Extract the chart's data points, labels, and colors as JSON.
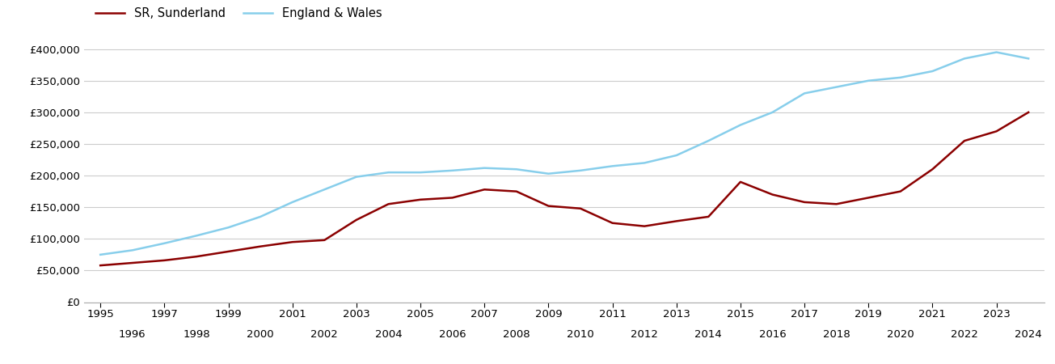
{
  "years": [
    1995,
    1996,
    1997,
    1998,
    1999,
    2000,
    2001,
    2002,
    2003,
    2004,
    2005,
    2006,
    2007,
    2008,
    2009,
    2010,
    2011,
    2012,
    2013,
    2014,
    2015,
    2016,
    2017,
    2018,
    2019,
    2020,
    2021,
    2022,
    2023,
    2024
  ],
  "sunderland": [
    58000,
    62000,
    66000,
    72000,
    80000,
    88000,
    95000,
    98000,
    130000,
    155000,
    162000,
    165000,
    178000,
    175000,
    152000,
    148000,
    125000,
    120000,
    128000,
    135000,
    190000,
    170000,
    158000,
    155000,
    165000,
    175000,
    210000,
    255000,
    270000,
    300000
  ],
  "england_wales": [
    75000,
    82000,
    93000,
    105000,
    118000,
    135000,
    158000,
    178000,
    198000,
    205000,
    205000,
    208000,
    212000,
    210000,
    203000,
    208000,
    215000,
    220000,
    232000,
    255000,
    280000,
    300000,
    330000,
    340000,
    350000,
    355000,
    365000,
    385000,
    395000,
    385000
  ],
  "sunderland_color": "#8B0000",
  "england_wales_color": "#87CEEB",
  "sunderland_label": "SR, Sunderland",
  "england_wales_label": "England & Wales",
  "ylim": [
    0,
    420000
  ],
  "yticks": [
    0,
    50000,
    100000,
    150000,
    200000,
    250000,
    300000,
    350000,
    400000
  ],
  "background_color": "#ffffff",
  "grid_color": "#cccccc",
  "line_width": 1.8,
  "legend_fontsize": 10.5,
  "tick_fontsize": 9.5
}
